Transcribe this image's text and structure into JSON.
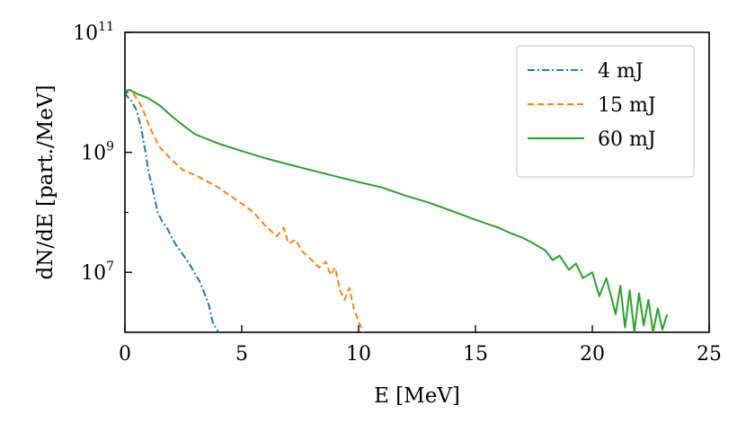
{
  "chart_data": {
    "type": "line",
    "title": "",
    "xlabel": "E [MeV]",
    "ylabel": "dN/dE [part./MeV]",
    "xlim": [
      0,
      25
    ],
    "ylim_log10": [
      6,
      11
    ],
    "yscale": "log",
    "x_ticks": [
      {
        "value": 0,
        "label": "0"
      },
      {
        "value": 5,
        "label": "5"
      },
      {
        "value": 10,
        "label": "10"
      },
      {
        "value": 15,
        "label": "15"
      },
      {
        "value": 20,
        "label": "20"
      },
      {
        "value": 25,
        "label": "25"
      }
    ],
    "y_ticks": [
      {
        "exp": 7,
        "base": "10",
        "sup": "7"
      },
      {
        "exp": 9,
        "base": "10",
        "sup": "9"
      },
      {
        "exp": 11,
        "base": "10",
        "sup": "11"
      }
    ],
    "legend": {
      "position": "upper-right"
    },
    "series": [
      {
        "name": "4 mJ",
        "color": "#1f77b4",
        "dash": "dashdot",
        "x": [
          0.0,
          0.1,
          0.3,
          0.5,
          0.7,
          0.9,
          1.0,
          1.2,
          1.4,
          1.6,
          1.8,
          2.0,
          2.2,
          2.4,
          2.6,
          2.8,
          3.0,
          3.2,
          3.4,
          3.6,
          3.7,
          3.8,
          3.9,
          4.0
        ],
        "y": [
          10000000000.0,
          8500000000.0,
          7000000000.0,
          5000000000.0,
          2500000000.0,
          900000000.0,
          500000000.0,
          230000000.0,
          100000000.0,
          70000000.0,
          55000000.0,
          38000000.0,
          28000000.0,
          22000000.0,
          17000000.0,
          13000000.0,
          9500000.0,
          7000000.0,
          4500000.0,
          2800000.0,
          1800000.0,
          1300000.0,
          1200000.0,
          1000000.0
        ]
      },
      {
        "name": "15 mJ",
        "color": "#ff7f0e",
        "dash": "dashed",
        "x": [
          0.0,
          0.2,
          0.4,
          0.6,
          0.8,
          1.0,
          1.2,
          1.5,
          2.0,
          2.5,
          3.0,
          3.5,
          4.0,
          4.5,
          5.0,
          5.5,
          6.0,
          6.5,
          6.8,
          7.0,
          7.3,
          7.6,
          8.0,
          8.3,
          8.6,
          8.8,
          9.0,
          9.2,
          9.4,
          9.6,
          9.8,
          10.0,
          10.2
        ],
        "y": [
          10500000000.0,
          11000000000.0,
          9000000000.0,
          7000000000.0,
          4800000000.0,
          3000000000.0,
          2000000000.0,
          1200000000.0,
          750000000.0,
          500000000.0,
          420000000.0,
          330000000.0,
          260000000.0,
          190000000.0,
          140000000.0,
          100000000.0,
          60000000.0,
          40000000.0,
          55000000.0,
          30000000.0,
          35000000.0,
          22000000.0,
          16000000.0,
          12000000.0,
          15000000.0,
          9000000.0,
          12000000.0,
          5000000.0,
          3500000.0,
          5500000.0,
          2500000.0,
          1500000.0,
          1000000.0
        ]
      },
      {
        "name": "60 mJ",
        "color": "#2ca02c",
        "dash": "solid",
        "x": [
          0.0,
          0.2,
          0.5,
          1.0,
          1.5,
          2.0,
          2.5,
          3.0,
          4.0,
          5.0,
          6.0,
          7.0,
          8.0,
          9.0,
          10.0,
          11.0,
          12.0,
          13.0,
          14.0,
          15.0,
          16.0,
          16.5,
          17.0,
          17.5,
          18.0,
          18.3,
          18.6,
          19.0,
          19.3,
          19.6,
          20.0,
          20.3,
          20.6,
          21.0,
          21.2,
          21.4,
          21.6,
          21.8,
          22.0,
          22.2,
          22.4,
          22.6,
          22.8,
          23.0,
          23.2
        ],
        "y": [
          10500000000.0,
          11000000000.0,
          9500000000.0,
          8000000000.0,
          6000000000.0,
          4000000000.0,
          2800000000.0,
          2000000000.0,
          1400000000.0,
          1050000000.0,
          800000000.0,
          630000000.0,
          500000000.0,
          400000000.0,
          320000000.0,
          260000000.0,
          190000000.0,
          145000000.0,
          105000000.0,
          75000000.0,
          55000000.0,
          45000000.0,
          38000000.0,
          30000000.0,
          23000000.0,
          16000000.0,
          19000000.0,
          11000000.0,
          14000000.0,
          8000000.0,
          10000000.0,
          4000000.0,
          8000000.0,
          2000000.0,
          6000000.0,
          1200000.0,
          5000000.0,
          1000000.0,
          4500000.0,
          1300000.0,
          3500000.0,
          1000000.0,
          2500000.0,
          1100000.0,
          2000000.0
        ]
      }
    ]
  }
}
